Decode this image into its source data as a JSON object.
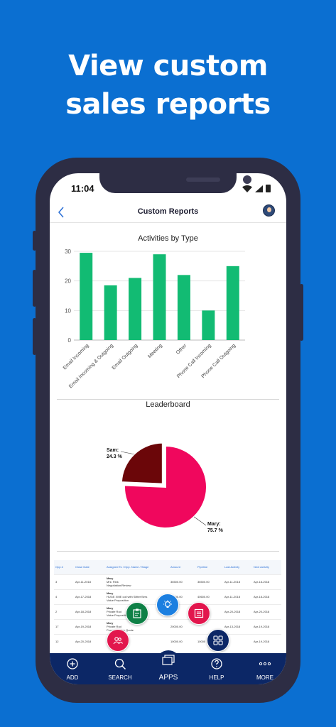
{
  "headline": {
    "line1": "View custom",
    "line2": "sales reports"
  },
  "status_bar": {
    "time": "11:04"
  },
  "header": {
    "title": "Custom Reports",
    "back_icon": "chevron-left-icon",
    "avatar": "user-avatar"
  },
  "colors": {
    "background": "#0b6fd1",
    "bar": "#12bb73",
    "mary": "#f0075d",
    "sam": "#6b0609",
    "tabbar": "#0c2766",
    "link": "#2a6fd6"
  },
  "chart_data": [
    {
      "type": "bar",
      "title": "Activities by Type",
      "categories": [
        "Email Incoming",
        "Email Incoming & Outgoing",
        "Email Outgoing",
        "Meeting",
        "Other",
        "Phone Call Incoming",
        "Phone Call Outgoing"
      ],
      "values": [
        29.5,
        18.5,
        21,
        29,
        22,
        10,
        25
      ],
      "ylim": [
        0,
        30
      ],
      "yticks": [
        "0",
        "10",
        "20",
        "30"
      ],
      "grid": true
    },
    {
      "type": "pie",
      "title": "Leaderboard",
      "slices": [
        {
          "label": "Mary:",
          "value": 75.7,
          "value_label": "75.7 %"
        },
        {
          "label": "Sam:",
          "value": 24.3,
          "value_label": "24.3 %"
        }
      ]
    }
  ],
  "table": {
    "headers": [
      "Opp #",
      "Close Date",
      "Assigned To / Opp. Name / Stage",
      "Amount",
      "Pipeline",
      "Last Activity",
      "Next Activity"
    ],
    "rows": [
      {
        "opp": "3",
        "close": "Apr-11-2018",
        "who": "Mary",
        "name": "Mnt. Rink",
        "stage": "Negotiation/Review",
        "amount": "36500.00",
        "pipeline": "36500.00",
        "last": "Apr-11-2018",
        "next": "Apr-18-2018"
      },
      {
        "opp": "4",
        "close": "Apr-17-2018",
        "who": "Mary",
        "name": "HUGE XME coil with Slitter/Sers",
        "stage": "Value Proposition",
        "amount": "40600.00",
        "pipeline": "40600.00",
        "last": "Apr-11-2018",
        "next": "Apr-18-2018"
      },
      {
        "opp": "2",
        "close": "Apr-18-2018",
        "who": "Mary",
        "name": "Private Rod",
        "stage": "Value Proposition",
        "amount": "",
        "pipeline": "",
        "last": "Apr-20-2018",
        "next": "Apr-20-2018"
      },
      {
        "opp": "17",
        "close": "Apr-19-2018",
        "who": "Mary",
        "name": "Private Rod",
        "stage": "Proposal/Price Quote",
        "amount": "20000.00",
        "pipeline": "",
        "last": "Apr-13-2018",
        "next": "Apr-19-2018"
      },
      {
        "opp": "12",
        "close": "Apr-20-2018",
        "who": "Mary",
        "name": "",
        "stage": "",
        "amount": "10000.00",
        "pipeline": "10000",
        "last": "",
        "next": "Apr-19-2018"
      }
    ]
  },
  "fabs": [
    "clipboard-icon",
    "lightbulb-icon",
    "list-icon",
    "contacts-icon",
    "grid-icon"
  ],
  "tabs": [
    {
      "label": "ADD",
      "icon": "plus-circle-icon"
    },
    {
      "label": "SEARCH",
      "icon": "search-icon"
    },
    {
      "label": "APPS",
      "icon": "apps-icon"
    },
    {
      "label": "HELP",
      "icon": "help-icon"
    },
    {
      "label": "MORE",
      "icon": "more-icon"
    }
  ]
}
